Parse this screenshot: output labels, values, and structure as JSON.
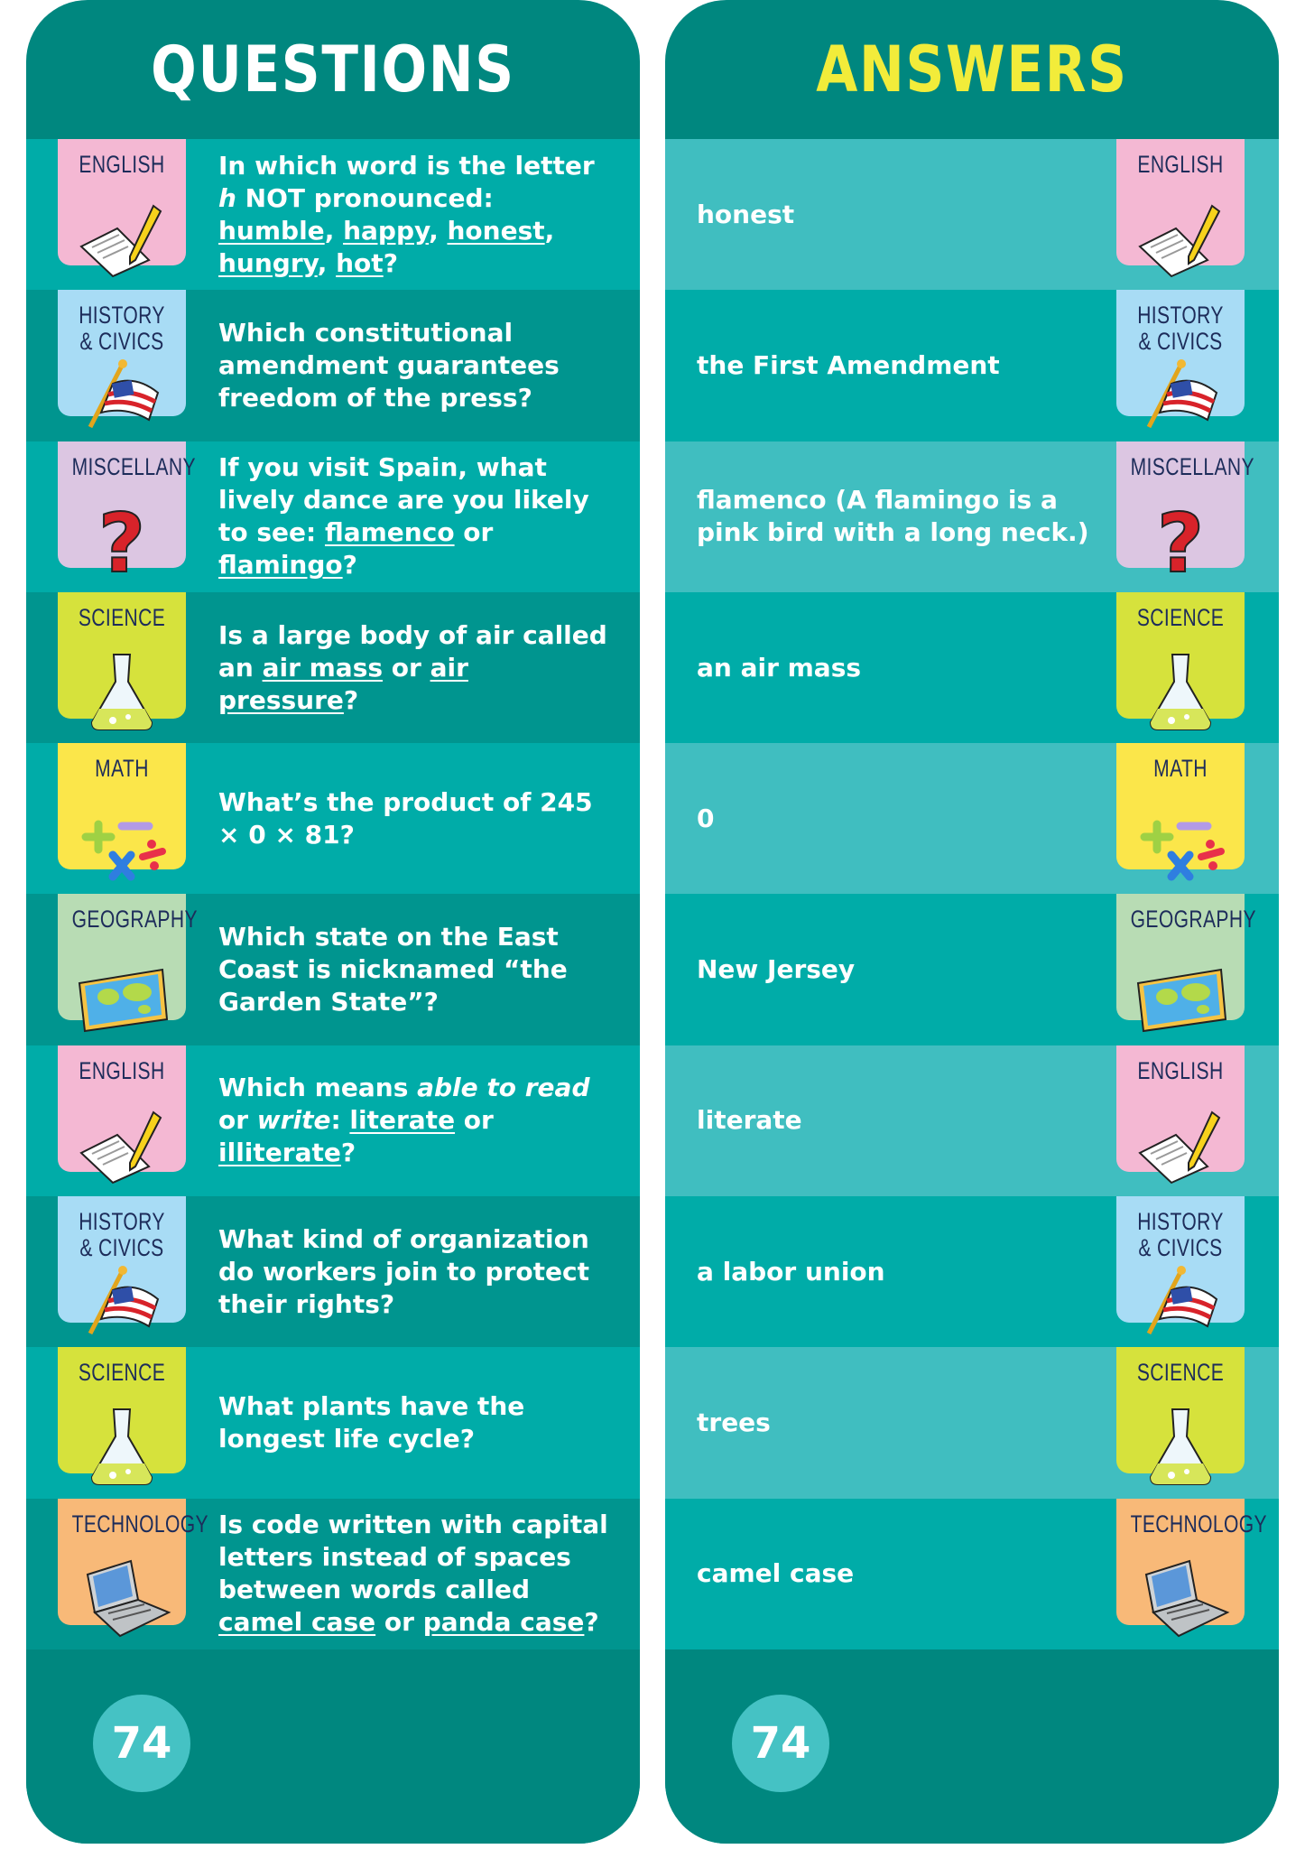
{
  "questions_title": "QUESTIONS",
  "answers_title": "ANSWERS",
  "page_number": "74",
  "colors": {
    "header": "#00877f",
    "answers_title": "#f2ec3a",
    "page_circle": "#45c2c4"
  },
  "categories": {
    "english": {
      "label": "ENGLISH",
      "color": "#f4b8d3",
      "icon": "pencil-paper-icon"
    },
    "history": {
      "label": "HISTORY\n& CIVICS",
      "color": "#a8dcf5",
      "icon": "american-flag-icon"
    },
    "misc": {
      "label": "MISCELLANY",
      "color": "#dcc6e2",
      "icon": "question-mark-icon"
    },
    "science": {
      "label": "SCIENCE",
      "color": "#d6e23c",
      "icon": "flask-icon"
    },
    "math": {
      "label": "MATH",
      "color": "#fbe64a",
      "icon": "math-symbols-icon"
    },
    "geography": {
      "label": "GEOGRAPHY",
      "color": "#b8dcb4",
      "icon": "world-map-icon"
    },
    "technology": {
      "label": "TECHNOLOGY",
      "color": "#f8b978",
      "icon": "laptop-icon"
    }
  },
  "items": [
    {
      "cat": "english",
      "question": [
        {
          "t": "In which word is the letter "
        },
        {
          "t": "h",
          "i": true
        },
        {
          "t": " NOT pronounced: "
        },
        {
          "t": "humble",
          "u": true
        },
        {
          "t": ", "
        },
        {
          "t": "happy",
          "u": true
        },
        {
          "t": ", "
        },
        {
          "t": "honest",
          "u": true
        },
        {
          "t": ", "
        },
        {
          "t": "hungry",
          "u": true
        },
        {
          "t": ", "
        },
        {
          "t": "hot",
          "u": true
        },
        {
          "t": "?"
        }
      ],
      "answer": "honest"
    },
    {
      "cat": "history",
      "question": [
        {
          "t": "Which constitutional amendment guarantees freedom of the press?"
        }
      ],
      "answer": "the First Amendment"
    },
    {
      "cat": "misc",
      "question": [
        {
          "t": "If you visit Spain, what lively dance are you likely to see: "
        },
        {
          "t": "flamenco",
          "u": true
        },
        {
          "t": " or "
        },
        {
          "t": "flamingo",
          "u": true
        },
        {
          "t": "?"
        }
      ],
      "answer": "flamenco (A flamingo is a pink bird with a long neck.)"
    },
    {
      "cat": "science",
      "question": [
        {
          "t": "Is a large body of air called an "
        },
        {
          "t": "air mass",
          "u": true
        },
        {
          "t": " or "
        },
        {
          "t": "air pressure",
          "u": true
        },
        {
          "t": "?"
        }
      ],
      "answer": "an air mass"
    },
    {
      "cat": "math",
      "question": [
        {
          "t": "What’s the product of 245 × 0 × 81?"
        }
      ],
      "answer": "0"
    },
    {
      "cat": "geography",
      "question": [
        {
          "t": "Which state on the East Coast is nicknamed “the Garden State”?"
        }
      ],
      "answer": "New Jersey"
    },
    {
      "cat": "english",
      "question": [
        {
          "t": "Which means "
        },
        {
          "t": "able to read",
          "i": true
        },
        {
          "t": " or "
        },
        {
          "t": "write",
          "i": true
        },
        {
          "t": ": "
        },
        {
          "t": "literate",
          "u": true
        },
        {
          "t": " or "
        },
        {
          "t": "illiterate",
          "u": true
        },
        {
          "t": "?"
        }
      ],
      "answer": "literate"
    },
    {
      "cat": "history",
      "question": [
        {
          "t": "What kind of organization do workers join to protect their rights?"
        }
      ],
      "answer": "a labor union"
    },
    {
      "cat": "science",
      "question": [
        {
          "t": "What plants have the longest life cycle?"
        }
      ],
      "answer": "trees"
    },
    {
      "cat": "technology",
      "question": [
        {
          "t": "Is code written with capital letters instead of spaces between words called "
        },
        {
          "t": "camel case",
          "u": true
        },
        {
          "t": " or "
        },
        {
          "t": "panda case",
          "u": true
        },
        {
          "t": "?"
        }
      ],
      "answer": "camel case"
    }
  ]
}
